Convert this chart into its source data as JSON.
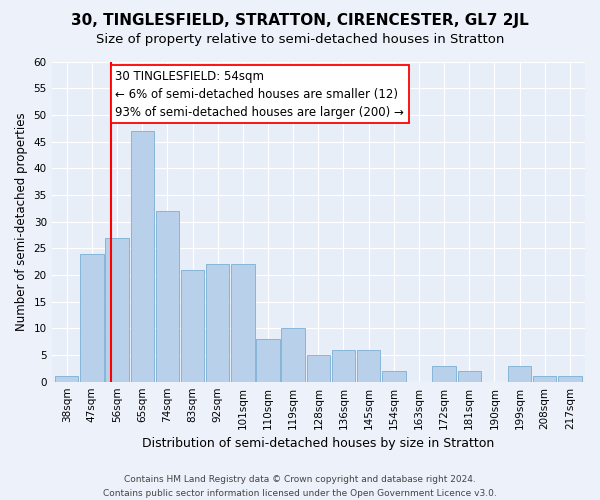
{
  "title": "30, TINGLESFIELD, STRATTON, CIRENCESTER, GL7 2JL",
  "subtitle": "Size of property relative to semi-detached houses in Stratton",
  "xlabel": "Distribution of semi-detached houses by size in Stratton",
  "ylabel": "Number of semi-detached properties",
  "categories": [
    "38sqm",
    "47sqm",
    "56sqm",
    "65sqm",
    "74sqm",
    "83sqm",
    "92sqm",
    "101sqm",
    "110sqm",
    "119sqm",
    "128sqm",
    "136sqm",
    "145sqm",
    "154sqm",
    "163sqm",
    "172sqm",
    "181sqm",
    "190sqm",
    "199sqm",
    "208sqm",
    "217sqm"
  ],
  "values": [
    1,
    24,
    27,
    47,
    32,
    21,
    22,
    22,
    8,
    10,
    5,
    6,
    6,
    2,
    0,
    3,
    2,
    0,
    3,
    1,
    1
  ],
  "bar_color": "#b8d0ea",
  "bar_edge_color": "#7aafd4",
  "background_color": "#e8eef8",
  "grid_color": "#ffffff",
  "annotation_text": "30 TINGLESFIELD: 54sqm\n← 6% of semi-detached houses are smaller (12)\n93% of semi-detached houses are larger (200) →",
  "vline_x": 1,
  "ylim": [
    0,
    60
  ],
  "footnote": "Contains HM Land Registry data © Crown copyright and database right 2024.\nContains public sector information licensed under the Open Government Licence v3.0.",
  "title_fontsize": 11,
  "subtitle_fontsize": 9.5,
  "annotation_fontsize": 8.5,
  "xlabel_fontsize": 9,
  "ylabel_fontsize": 8.5,
  "tick_fontsize": 7.5,
  "footnote_fontsize": 6.5
}
